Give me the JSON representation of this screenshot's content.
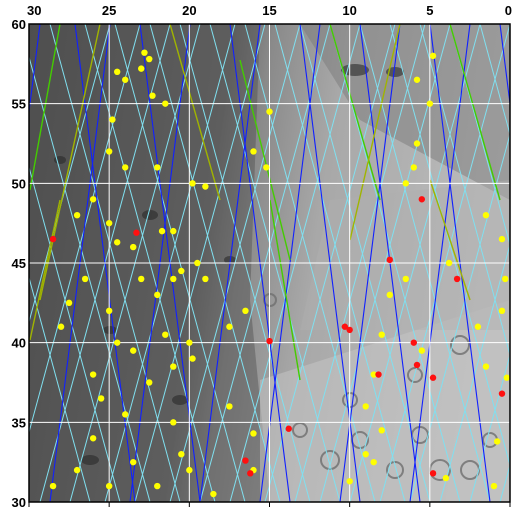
{
  "map": {
    "x_axis": {
      "ticks": [
        "30",
        "25",
        "20",
        "15",
        "10",
        "5",
        "0"
      ],
      "range": [
        30,
        0
      ],
      "reversed": true
    },
    "y_axis": {
      "ticks": [
        "60",
        "55",
        "50",
        "45",
        "40",
        "35",
        "30"
      ],
      "range": [
        30,
        60
      ]
    },
    "grid": true,
    "colors": {
      "grid": "#ffffff",
      "track_blue": "#1020ff",
      "track_cyan": "#80e0f0",
      "track_green": "#44cc00",
      "track_olive": "#a0b400",
      "marker_yellow": "#ffff00",
      "marker_red": "#ff1010",
      "terrain_dark": "#5a5a5a",
      "terrain_light": "#b8b8b8"
    },
    "yellow_points": [
      [
        22.8,
        58.2
      ],
      [
        22.5,
        57.8
      ],
      [
        24.5,
        57.0
      ],
      [
        23.0,
        57.2
      ],
      [
        24.0,
        56.5
      ],
      [
        22.3,
        55.5
      ],
      [
        21.5,
        55.0
      ],
      [
        24.8,
        54.0
      ],
      [
        25.0,
        52.0
      ],
      [
        24.0,
        51.0
      ],
      [
        22.0,
        51.0
      ],
      [
        19.8,
        50.0
      ],
      [
        19.0,
        49.8
      ],
      [
        26.0,
        49.0
      ],
      [
        27.0,
        48.0
      ],
      [
        25.0,
        47.5
      ],
      [
        21.7,
        47.0
      ],
      [
        21.0,
        47.0
      ],
      [
        24.5,
        46.3
      ],
      [
        23.5,
        46.0
      ],
      [
        19.5,
        45.0
      ],
      [
        20.5,
        44.5
      ],
      [
        26.5,
        44.0
      ],
      [
        23.0,
        44.0
      ],
      [
        21.0,
        44.0
      ],
      [
        19.0,
        44.0
      ],
      [
        22.0,
        43.0
      ],
      [
        16.5,
        42.0
      ],
      [
        27.5,
        42.5
      ],
      [
        25.0,
        42.0
      ],
      [
        17.5,
        41.0
      ],
      [
        28.0,
        41.0
      ],
      [
        21.5,
        40.5
      ],
      [
        20.0,
        40.0
      ],
      [
        24.5,
        40.0
      ],
      [
        23.5,
        39.5
      ],
      [
        19.8,
        39.0
      ],
      [
        21.0,
        38.5
      ],
      [
        26.0,
        38.0
      ],
      [
        22.5,
        37.5
      ],
      [
        25.5,
        36.5
      ],
      [
        17.5,
        36.0
      ],
      [
        24.0,
        35.5
      ],
      [
        21.0,
        35.0
      ],
      [
        26.0,
        34.0
      ],
      [
        20.5,
        33.0
      ],
      [
        23.5,
        32.5
      ],
      [
        20.0,
        32.0
      ],
      [
        27.0,
        32.0
      ],
      [
        25.0,
        31.0
      ],
      [
        28.5,
        31.0
      ],
      [
        22.0,
        31.0
      ],
      [
        18.5,
        30.5
      ],
      [
        15.0,
        54.5
      ],
      [
        16.0,
        52.0
      ],
      [
        15.2,
        51.0
      ],
      [
        5.8,
        56.5
      ],
      [
        5.0,
        55.0
      ],
      [
        4.8,
        58.0
      ],
      [
        5.8,
        52.5
      ],
      [
        6.0,
        51.0
      ],
      [
        6.5,
        50.0
      ],
      [
        1.5,
        48.0
      ],
      [
        0.5,
        46.5
      ],
      [
        6.5,
        44.0
      ],
      [
        3.8,
        45.0
      ],
      [
        0.3,
        44.0
      ],
      [
        7.5,
        43.0
      ],
      [
        0.5,
        42.0
      ],
      [
        2.0,
        41.0
      ],
      [
        8.0,
        40.5
      ],
      [
        5.5,
        39.5
      ],
      [
        1.5,
        38.5
      ],
      [
        8.5,
        38.0
      ],
      [
        0.2,
        37.8
      ],
      [
        9.0,
        36.0
      ],
      [
        8.0,
        34.5
      ],
      [
        0.8,
        33.8
      ],
      [
        9.0,
        33.0
      ],
      [
        8.5,
        32.5
      ],
      [
        10.0,
        31.3
      ],
      [
        1.0,
        31.0
      ],
      [
        4.0,
        31.5
      ],
      [
        16.0,
        34.3
      ],
      [
        16.0,
        32.0
      ]
    ],
    "red_points": [
      [
        28.5,
        46.5
      ],
      [
        23.3,
        46.9
      ],
      [
        5.5,
        49.0
      ],
      [
        7.5,
        45.2
      ],
      [
        3.3,
        44.0
      ],
      [
        15.0,
        40.1
      ],
      [
        10.3,
        41.0
      ],
      [
        10.0,
        40.8
      ],
      [
        6.0,
        40.0
      ],
      [
        5.8,
        38.6
      ],
      [
        8.2,
        38.0
      ],
      [
        4.8,
        37.8
      ],
      [
        0.5,
        36.8
      ],
      [
        13.8,
        34.6
      ],
      [
        16.5,
        32.6
      ],
      [
        16.2,
        31.8
      ],
      [
        4.8,
        31.8
      ]
    ]
  }
}
